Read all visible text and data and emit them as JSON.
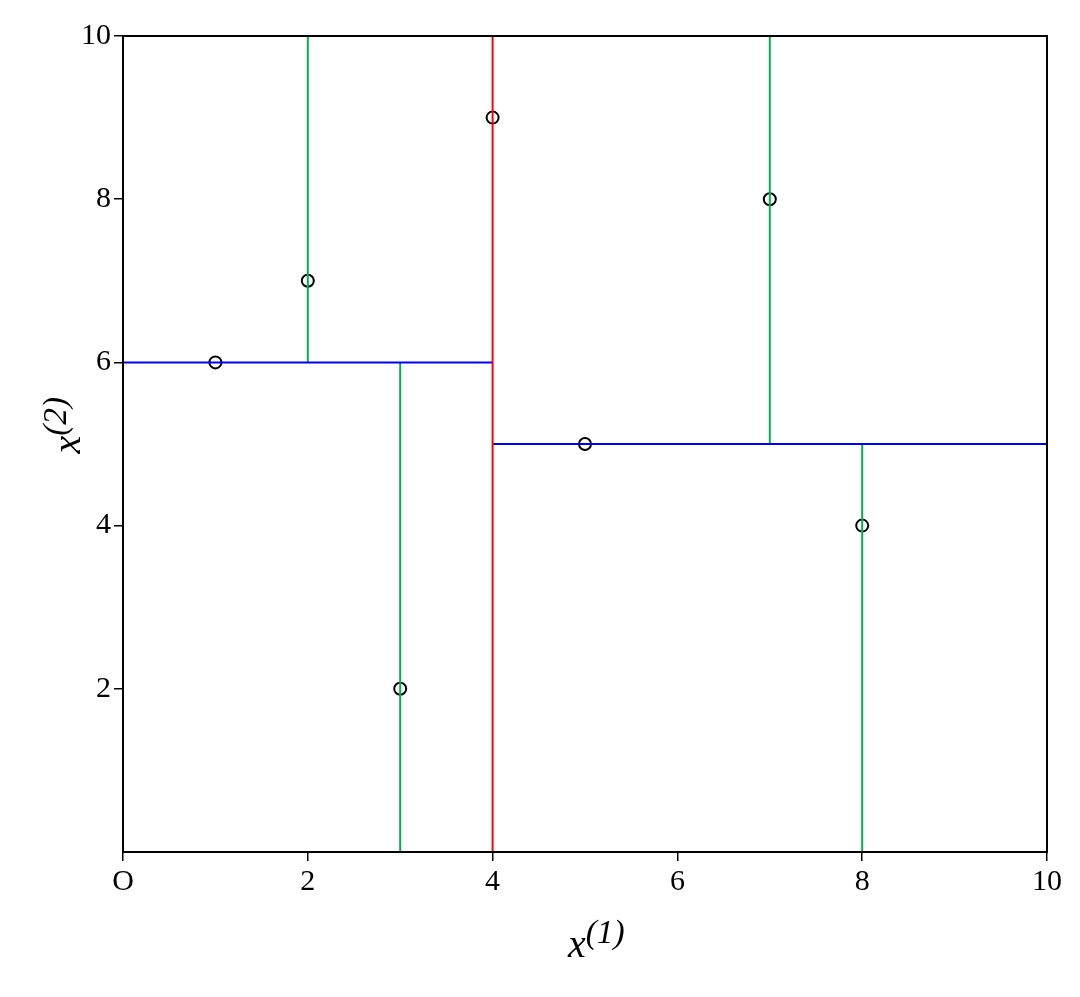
{
  "chart_data": {
    "type": "scatter",
    "xlabel": "x$^{(1)}$",
    "ylabel": "x$^{(2)}$",
    "xlim": [
      0,
      10
    ],
    "ylim": [
      0,
      10
    ],
    "xticks": [
      {
        "value": 0,
        "label": "O"
      },
      2,
      4,
      6,
      8,
      10
    ],
    "yticks": [
      2,
      4,
      6,
      8,
      10
    ],
    "grid": false,
    "legend": false,
    "line_style": "solid",
    "series": [
      {
        "type": "line",
        "color": "#ff0000",
        "x": [
          4,
          4
        ],
        "values": [
          0,
          10
        ]
      },
      {
        "type": "line",
        "color": "#0000ff",
        "x": [
          0,
          4
        ],
        "values": [
          6,
          6
        ]
      },
      {
        "type": "line",
        "color": "#0000ff",
        "x": [
          4,
          10
        ],
        "values": [
          5,
          5
        ]
      },
      {
        "type": "line",
        "color": "#00b050",
        "x": [
          2,
          2
        ],
        "values": [
          6,
          10
        ]
      },
      {
        "type": "line",
        "color": "#00b050",
        "x": [
          3,
          3
        ],
        "values": [
          0,
          6
        ]
      },
      {
        "type": "line",
        "color": "#00b050",
        "x": [
          7,
          7
        ],
        "values": [
          5,
          10
        ]
      },
      {
        "type": "line",
        "color": "#00b050",
        "x": [
          8,
          8
        ],
        "values": [
          0,
          5
        ]
      },
      {
        "type": "scatter",
        "marker": "circle",
        "color": "#000000",
        "x": [
          1,
          2,
          3,
          4,
          5,
          7,
          8
        ],
        "values": [
          6,
          7,
          2,
          9,
          5,
          8,
          4
        ]
      }
    ]
  }
}
